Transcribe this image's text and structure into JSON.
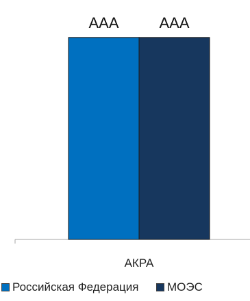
{
  "chart_data": {
    "type": "bar",
    "categories": [
      "АКРА"
    ],
    "series": [
      {
        "name": "Российская Федерация",
        "values": [
          1
        ],
        "data_labels": [
          "ААА"
        ],
        "color": "#0070c0"
      },
      {
        "name": "МОЭС",
        "values": [
          1
        ],
        "data_labels": [
          "ААА"
        ],
        "color": "#17375e"
      }
    ],
    "ylim": [
      0,
      1.05
    ],
    "title": "",
    "xlabel": "",
    "ylabel": "",
    "grid": false,
    "legend_position": "bottom"
  },
  "legend": {
    "items": [
      {
        "label": "Российская Федерация",
        "color": "#0070c0"
      },
      {
        "label": "МОЭС",
        "color": "#17375e"
      }
    ]
  }
}
